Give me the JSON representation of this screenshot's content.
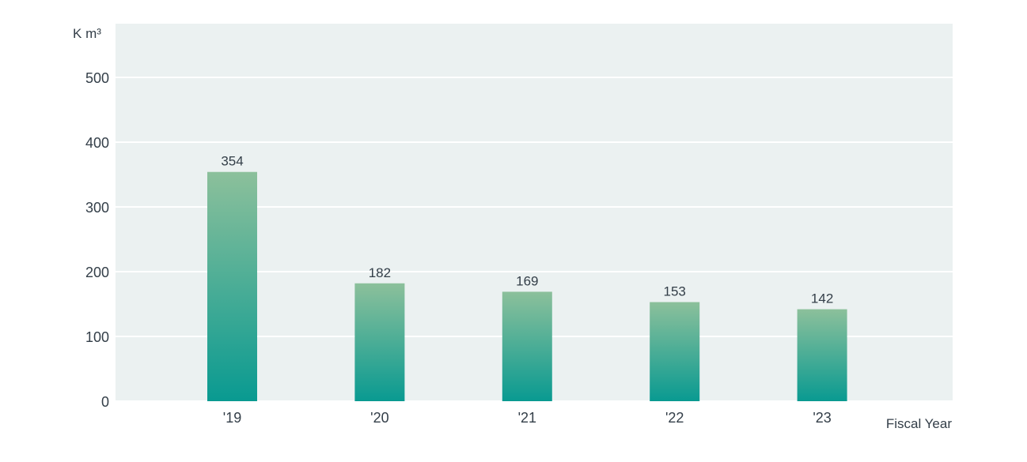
{
  "chart_data": {
    "type": "bar",
    "categories": [
      "'19",
      "'20",
      "'21",
      "'22",
      "'23"
    ],
    "values": [
      354,
      182,
      169,
      153,
      142
    ],
    "data_labels": [
      "354",
      "182",
      "169",
      "153",
      "142"
    ],
    "ylabel": "K m³",
    "xlabel": "Fiscal Year",
    "ylim": [
      0,
      500
    ],
    "yticks": [
      "0",
      "100",
      "200",
      "300",
      "400",
      "500"
    ],
    "ytick_values": [
      0,
      100,
      200,
      300,
      400,
      500
    ],
    "grid": true,
    "legend": "none",
    "colors": {
      "plot_background": "#ebf1f1",
      "gridline": "#ffffff",
      "bar_top": "#8cc09b",
      "bar_bottom": "#099a91",
      "text": "#333e48"
    }
  }
}
